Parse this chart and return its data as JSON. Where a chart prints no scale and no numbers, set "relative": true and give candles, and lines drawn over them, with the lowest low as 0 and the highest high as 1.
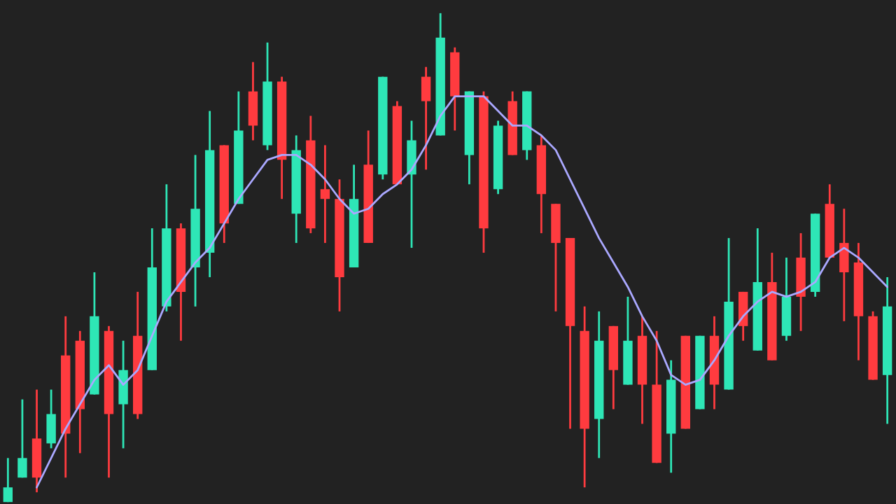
{
  "chart_data": {
    "type": "candlestick",
    "relative": true,
    "categories": [
      null,
      null,
      null,
      null,
      null,
      null,
      null,
      null,
      null,
      null,
      null,
      null,
      null,
      null,
      null,
      null,
      null,
      null,
      null,
      null,
      null,
      null,
      null,
      null,
      null,
      null,
      null,
      null,
      null,
      null,
      null,
      null,
      null,
      null,
      null,
      null,
      null,
      null,
      null,
      null,
      null,
      null,
      null,
      null,
      null,
      null,
      null,
      null,
      null,
      null,
      null,
      null,
      null,
      null,
      null,
      null,
      null,
      null,
      null,
      null,
      null,
      null
    ],
    "ohlc": [
      [
        0,
        0.09,
        0,
        0.03
      ],
      [
        0.05,
        0.21,
        0.05,
        0.09
      ],
      [
        0.13,
        0.23,
        0.02,
        0.05
      ],
      [
        0.12,
        0.23,
        0.11,
        0.18
      ],
      [
        0.3,
        0.38,
        0.05,
        0.14
      ],
      [
        0.33,
        0.35,
        0.1,
        0.19
      ],
      [
        0.22,
        0.47,
        0.22,
        0.38
      ],
      [
        0.35,
        0.36,
        0.05,
        0.18
      ],
      [
        0.2,
        0.33,
        0.11,
        0.27
      ],
      [
        0.34,
        0.43,
        0.17,
        0.18
      ],
      [
        0.27,
        0.56,
        0.27,
        0.48
      ],
      [
        0.4,
        0.65,
        0.39,
        0.56
      ],
      [
        0.56,
        0.57,
        0.33,
        0.43
      ],
      [
        0.48,
        0.71,
        0.4,
        0.6
      ],
      [
        0.51,
        0.8,
        0.46,
        0.72
      ],
      [
        0.73,
        0.73,
        0.53,
        0.57
      ],
      [
        0.61,
        0.84,
        0.61,
        0.76
      ],
      [
        0.84,
        0.9,
        0.74,
        0.77
      ],
      [
        0.73,
        0.94,
        0.72,
        0.86
      ],
      [
        0.86,
        0.87,
        0.62,
        0.7
      ],
      [
        0.59,
        0.75,
        0.53,
        0.72
      ],
      [
        0.74,
        0.79,
        0.55,
        0.56
      ],
      [
        0.64,
        0.73,
        0.53,
        0.62
      ],
      [
        0.62,
        0.66,
        0.39,
        0.46
      ],
      [
        0.48,
        0.69,
        0.48,
        0.62
      ],
      [
        0.69,
        0.76,
        0.53,
        0.53
      ],
      [
        0.67,
        0.87,
        0.66,
        0.87
      ],
      [
        0.81,
        0.82,
        0.65,
        0.65
      ],
      [
        0.67,
        0.78,
        0.52,
        0.74
      ],
      [
        0.87,
        0.89,
        0.68,
        0.82
      ],
      [
        0.75,
        1,
        0.75,
        0.95
      ],
      [
        0.92,
        0.93,
        0.76,
        0.83
      ],
      [
        0.71,
        0.84,
        0.65,
        0.84
      ],
      [
        0.83,
        0.84,
        0.51,
        0.56
      ],
      [
        0.64,
        0.78,
        0.63,
        0.77
      ],
      [
        0.82,
        0.84,
        0.71,
        0.71
      ],
      [
        0.72,
        0.84,
        0.7,
        0.84
      ],
      [
        0.73,
        0.75,
        0.55,
        0.63
      ],
      [
        0.61,
        0.61,
        0.39,
        0.53
      ],
      [
        0.54,
        0.54,
        0.15,
        0.36
      ],
      [
        0.35,
        0.4,
        0.03,
        0.15
      ],
      [
        0.17,
        0.39,
        0.09,
        0.33
      ],
      [
        0.36,
        0.36,
        0.19,
        0.27
      ],
      [
        0.24,
        0.42,
        0.24,
        0.33
      ],
      [
        0.34,
        0.38,
        0.16,
        0.24
      ],
      [
        0.24,
        0.35,
        0.08,
        0.08
      ],
      [
        0.14,
        0.29,
        0.06,
        0.25
      ],
      [
        0.34,
        0.34,
        0.15,
        0.15
      ],
      [
        0.19,
        0.34,
        0.19,
        0.34
      ],
      [
        0.34,
        0.38,
        0.19,
        0.24
      ],
      [
        0.23,
        0.54,
        0.23,
        0.41
      ],
      [
        0.43,
        0.43,
        0.33,
        0.36
      ],
      [
        0.31,
        0.56,
        0.31,
        0.45
      ],
      [
        0.45,
        0.51,
        0.29,
        0.29
      ],
      [
        0.34,
        0.5,
        0.33,
        0.42
      ],
      [
        0.5,
        0.55,
        0.35,
        0.42
      ],
      [
        0.43,
        0.59,
        0.42,
        0.59
      ],
      [
        0.61,
        0.65,
        0.5,
        0.5
      ],
      [
        0.53,
        0.6,
        0.37,
        0.47
      ],
      [
        0.49,
        0.53,
        0.29,
        0.38
      ],
      [
        0.38,
        0.39,
        0.25,
        0.25
      ],
      [
        0.26,
        0.46,
        0.16,
        0.4
      ]
    ],
    "colors": [
      "#2ee6b6",
      "#2ee6b6",
      "#ff3b3f",
      "#2ee6b6",
      "#ff3b3f",
      "#ff3b3f",
      "#2ee6b6",
      "#ff3b3f",
      "#2ee6b6",
      "#ff3b3f",
      "#2ee6b6",
      "#2ee6b6",
      "#ff3b3f",
      "#2ee6b6",
      "#2ee6b6",
      "#ff3b3f",
      "#2ee6b6",
      "#ff3b3f",
      "#2ee6b6",
      "#ff3b3f",
      "#2ee6b6",
      "#ff3b3f",
      "#ff3b3f",
      "#ff3b3f",
      "#2ee6b6",
      "#ff3b3f",
      "#2ee6b6",
      "#ff3b3f",
      "#2ee6b6",
      "#ff3b3f",
      "#2ee6b6",
      "#ff3b3f",
      "#2ee6b6",
      "#ff3b3f",
      "#2ee6b6",
      "#ff3b3f",
      "#2ee6b6",
      "#ff3b3f",
      "#ff3b3f",
      "#ff3b3f",
      "#ff3b3f",
      "#2ee6b6",
      "#ff3b3f",
      "#2ee6b6",
      "#ff3b3f",
      "#ff3b3f",
      "#2ee6b6",
      "#ff3b3f",
      "#2ee6b6",
      "#ff3b3f",
      "#2ee6b6",
      "#ff3b3f",
      "#2ee6b6",
      "#ff3b3f",
      "#2ee6b6",
      "#ff3b3f",
      "#2ee6b6",
      "#ff3b3f",
      "#ff3b3f",
      "#ff3b3f",
      "#ff3b3f",
      "#2ee6b6"
    ],
    "series": [
      {
        "type": "line",
        "color": "#aaa8ff",
        "values": [
          null,
          null,
          0.03,
          0.09,
          0.15,
          0.2,
          0.25,
          0.28,
          0.24,
          0.27,
          0.34,
          0.41,
          0.45,
          0.49,
          0.52,
          0.57,
          0.62,
          0.66,
          0.7,
          0.71,
          0.71,
          0.69,
          0.66,
          0.62,
          0.59,
          0.6,
          0.63,
          0.65,
          0.68,
          0.73,
          0.79,
          0.83,
          0.83,
          0.83,
          0.8,
          0.77,
          0.77,
          0.75,
          0.72,
          0.66,
          0.6,
          0.54,
          0.49,
          0.44,
          0.38,
          0.33,
          0.26,
          0.24,
          0.25,
          0.29,
          0.34,
          0.38,
          0.41,
          0.43,
          0.42,
          0.43,
          0.45,
          0.5,
          0.52,
          0.5,
          0.47,
          0.44
        ]
      }
    ]
  }
}
